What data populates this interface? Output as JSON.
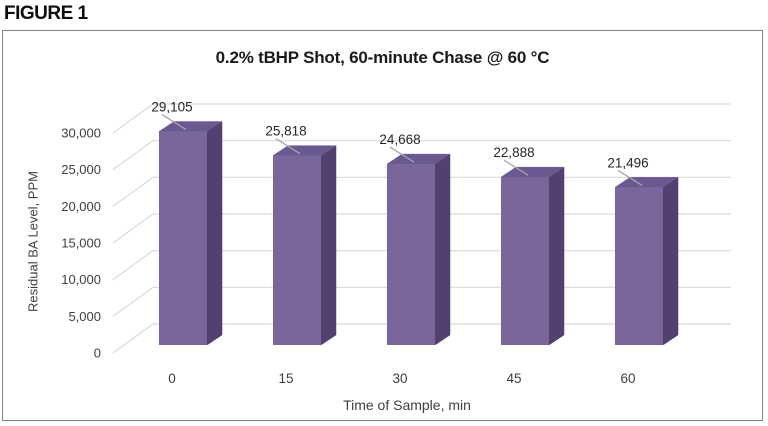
{
  "page": {
    "figure_label": "FIGURE 1"
  },
  "chart_data": {
    "type": "bar",
    "style": "3d-column",
    "title": "0.2% tBHP Shot, 60-minute Chase @ 60 °C",
    "xlabel": "Time of Sample, min",
    "ylabel": "Residual BA Level, PPM",
    "categories": [
      "0",
      "15",
      "30",
      "45",
      "60"
    ],
    "values": [
      29105,
      25818,
      24668,
      22888,
      21496
    ],
    "data_labels": [
      "29,105",
      "25,818",
      "24,668",
      "22,888",
      "21,496"
    ],
    "ylim": [
      0,
      30000
    ],
    "ytick_step": 5000,
    "ytick_labels": [
      "0",
      "5,000",
      "10,000",
      "15,000",
      "20,000",
      "25,000",
      "30,000"
    ],
    "grid": true,
    "legend": "none",
    "colors": {
      "bar_front": "#7a669a",
      "bar_side": "#514070",
      "bar_top": "#6a5890",
      "gridline": "#d9d9d9",
      "leader": "#a6a6a6",
      "tick_text": "#3f3f3f",
      "data_label_text": "#262626",
      "border": "#7f7f7f"
    }
  }
}
